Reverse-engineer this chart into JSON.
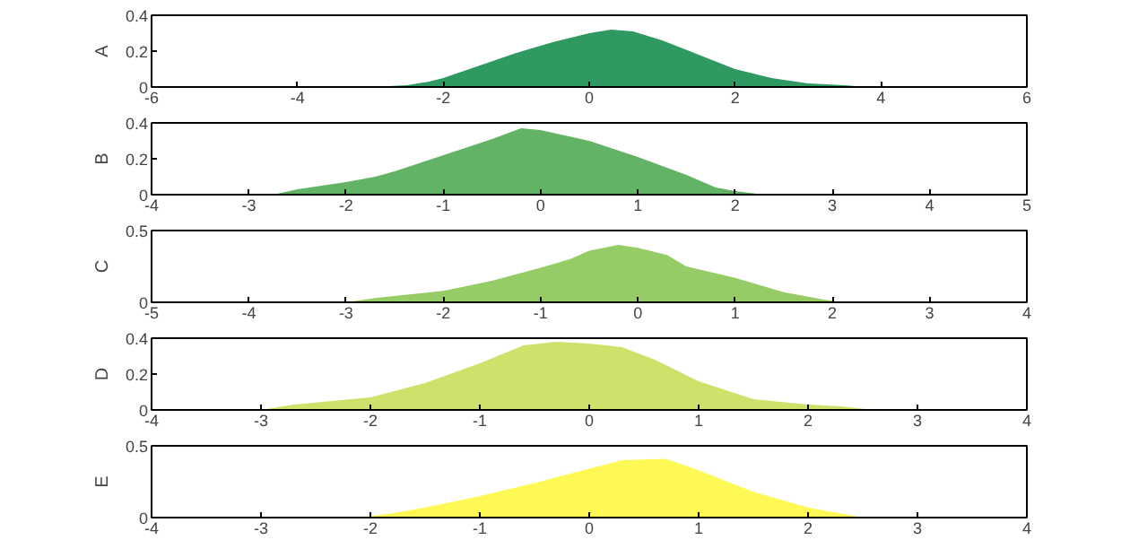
{
  "chart_data": [
    {
      "type": "area",
      "ylabel": "A",
      "color": "#2e9a62",
      "x": [
        -3,
        -2.5,
        -2.2,
        -2,
        -1.5,
        -1,
        -0.5,
        0,
        0.3,
        0.6,
        1,
        1.5,
        2,
        2.5,
        3,
        3.5,
        3.8
      ],
      "values": [
        0,
        0.01,
        0.03,
        0.05,
        0.12,
        0.19,
        0.25,
        0.3,
        0.32,
        0.31,
        0.26,
        0.18,
        0.1,
        0.05,
        0.02,
        0.01,
        0
      ],
      "xlim": [
        -6,
        6
      ],
      "xticks": [
        -6,
        -4,
        -2,
        0,
        2,
        4,
        6
      ],
      "ylim": [
        0,
        0.4
      ],
      "yticks": [
        0,
        0.2,
        0.4
      ],
      "grid": false
    },
    {
      "type": "area",
      "ylabel": "B",
      "color": "#62b366",
      "x": [
        -2.75,
        -2.5,
        -2,
        -1.7,
        -1.5,
        -1,
        -0.5,
        -0.2,
        0,
        0.5,
        1,
        1.5,
        1.8,
        2,
        2.3
      ],
      "values": [
        0,
        0.03,
        0.07,
        0.1,
        0.13,
        0.22,
        0.31,
        0.37,
        0.36,
        0.3,
        0.21,
        0.11,
        0.04,
        0.02,
        0
      ],
      "xlim": [
        -4,
        5
      ],
      "xticks": [
        -4,
        -3,
        -2,
        -1,
        0,
        1,
        2,
        3,
        4,
        5
      ],
      "ylim": [
        0,
        0.4
      ],
      "yticks": [
        0,
        0.2,
        0.4
      ],
      "grid": false
    },
    {
      "type": "area",
      "ylabel": "C",
      "color": "#96cc66",
      "x": [
        -3,
        -2.7,
        -2,
        -1.5,
        -1,
        -0.7,
        -0.5,
        -0.2,
        0,
        0.3,
        0.5,
        1,
        1.5,
        1.9,
        2.1
      ],
      "values": [
        0,
        0.03,
        0.08,
        0.15,
        0.24,
        0.3,
        0.36,
        0.4,
        0.38,
        0.33,
        0.25,
        0.17,
        0.07,
        0.02,
        0
      ],
      "xlim": [
        -5,
        4
      ],
      "xticks": [
        -5,
        -4,
        -3,
        -2,
        -1,
        0,
        1,
        2,
        3,
        4
      ],
      "ylim": [
        0,
        0.5
      ],
      "yticks": [
        0,
        0.5
      ],
      "grid": false
    },
    {
      "type": "area",
      "ylabel": "D",
      "color": "#cde26a",
      "x": [
        -3,
        -2.7,
        -2,
        -1.5,
        -1,
        -0.6,
        -0.3,
        0,
        0.3,
        0.6,
        1,
        1.5,
        2,
        2.3,
        2.6
      ],
      "values": [
        0,
        0.03,
        0.07,
        0.15,
        0.26,
        0.36,
        0.38,
        0.37,
        0.35,
        0.28,
        0.16,
        0.06,
        0.03,
        0.02,
        0
      ],
      "xlim": [
        -4,
        4
      ],
      "xticks": [
        -4,
        -3,
        -2,
        -1,
        0,
        1,
        2,
        3,
        4
      ],
      "ylim": [
        0,
        0.4
      ],
      "yticks": [
        0,
        0.2,
        0.4
      ],
      "grid": false
    },
    {
      "type": "area",
      "ylabel": "E",
      "color": "#fff955",
      "x": [
        -2.1,
        -1.8,
        -1.5,
        -1,
        -0.5,
        0,
        0.3,
        0.7,
        1,
        1.5,
        2,
        2.5
      ],
      "values": [
        0,
        0.03,
        0.07,
        0.15,
        0.24,
        0.34,
        0.4,
        0.41,
        0.33,
        0.18,
        0.07,
        0
      ],
      "xlim": [
        -4,
        4
      ],
      "xticks": [
        -4,
        -3,
        -2,
        -1,
        0,
        1,
        2,
        3,
        4
      ],
      "ylim": [
        0,
        0.5
      ],
      "yticks": [
        0,
        0.5
      ],
      "grid": false
    }
  ]
}
